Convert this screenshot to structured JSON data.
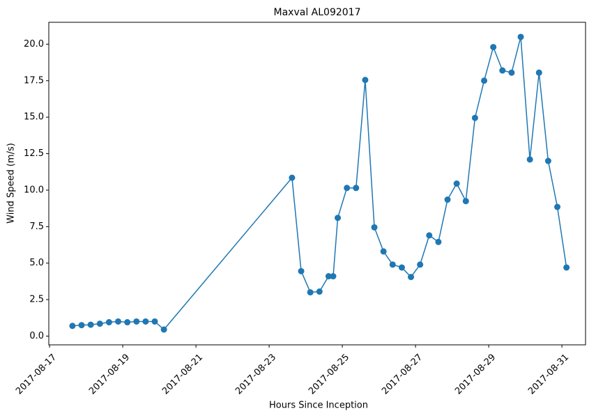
{
  "chart_data": {
    "type": "line",
    "title": "Maxval AL092017",
    "x_label": "Hours Since Inception",
    "y_label": "Wind Speed (m/s)",
    "x": [
      "2017-08-17T15:00",
      "2017-08-17T21:00",
      "2017-08-18T03:00",
      "2017-08-18T09:00",
      "2017-08-18T15:00",
      "2017-08-18T21:00",
      "2017-08-19T03:00",
      "2017-08-19T09:00",
      "2017-08-19T15:00",
      "2017-08-19T21:00",
      "2017-08-20T03:00",
      "2017-08-23T15:00",
      "2017-08-23T21:00",
      "2017-08-24T03:00",
      "2017-08-24T09:00",
      "2017-08-24T15:00",
      "2017-08-24T18:00",
      "2017-08-24T21:00",
      "2017-08-25T03:00",
      "2017-08-25T09:00",
      "2017-08-25T15:00",
      "2017-08-25T21:00",
      "2017-08-26T03:00",
      "2017-08-26T09:00",
      "2017-08-26T15:00",
      "2017-08-26T21:00",
      "2017-08-27T03:00",
      "2017-08-27T09:00",
      "2017-08-27T15:00",
      "2017-08-27T21:00",
      "2017-08-28T03:00",
      "2017-08-28T09:00",
      "2017-08-28T15:00",
      "2017-08-28T21:00",
      "2017-08-29T03:00",
      "2017-08-29T09:00",
      "2017-08-29T15:00",
      "2017-08-29T21:00",
      "2017-08-30T03:00",
      "2017-08-30T09:00",
      "2017-08-30T15:00",
      "2017-08-30T21:00",
      "2017-08-31T03:00"
    ],
    "series": [
      {
        "name": "Maxval",
        "color": "#1f77b4",
        "values": [
          0.7,
          0.75,
          0.78,
          0.85,
          0.95,
          1.0,
          0.95,
          1.0,
          1.0,
          1.0,
          0.45,
          10.85,
          4.45,
          3.0,
          3.05,
          4.1,
          4.1,
          8.1,
          10.15,
          10.15,
          17.55,
          7.45,
          5.8,
          4.9,
          4.7,
          4.05,
          4.9,
          6.9,
          6.45,
          9.35,
          10.45,
          9.25,
          14.95,
          17.5,
          19.8,
          18.2,
          18.05,
          20.5,
          12.1,
          18.05,
          12.0,
          8.85,
          4.7
        ]
      }
    ],
    "xlim": [
      "2017-08-16T23:30",
      "2017-08-31T15:30"
    ],
    "xticks": [
      "2017-08-17",
      "2017-08-19",
      "2017-08-21",
      "2017-08-23",
      "2017-08-25",
      "2017-08-27",
      "2017-08-29",
      "2017-08-31"
    ],
    "ylim": [
      -0.6,
      21.5
    ],
    "yticks": [
      {
        "value": 0,
        "label": "0.0"
      },
      {
        "value": 2.5,
        "label": "2.5"
      },
      {
        "value": 5,
        "label": "5.0"
      },
      {
        "value": 7.5,
        "label": "7.5"
      },
      {
        "value": 10,
        "label": "10.0"
      },
      {
        "value": 12.5,
        "label": "12.5"
      },
      {
        "value": 15,
        "label": "15.0"
      },
      {
        "value": 17.5,
        "label": "17.5"
      },
      {
        "value": 20,
        "label": "20.0"
      }
    ],
    "grid": false
  }
}
